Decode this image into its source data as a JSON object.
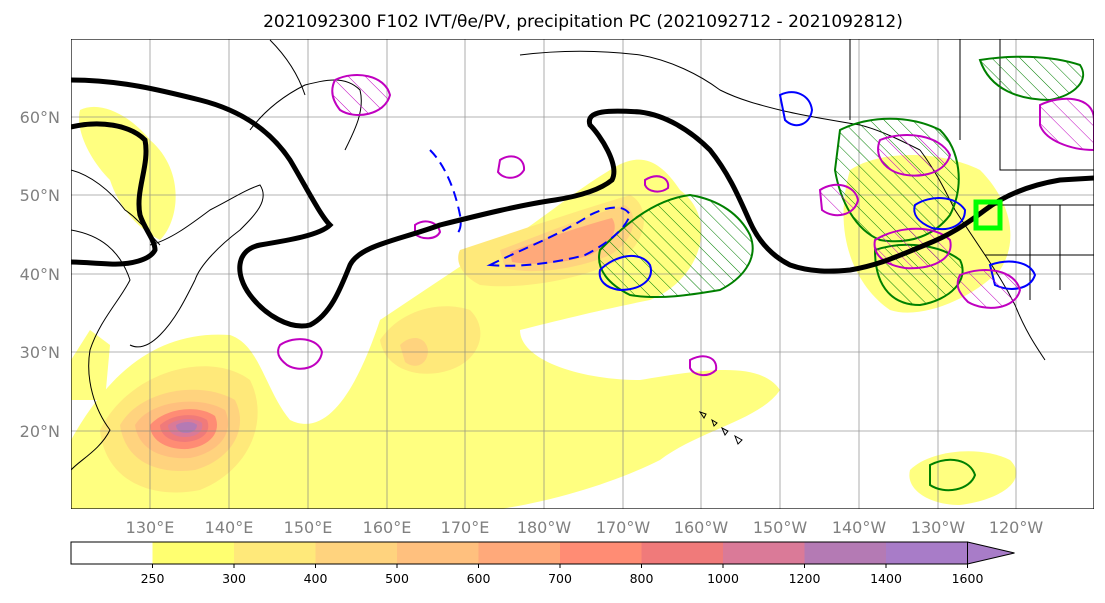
{
  "title": "2021092300 F102 IVT/θe/PV, precipitation PC (2021092712 - 2021092812)",
  "map": {
    "lat_labels": [
      "60°N",
      "50°N",
      "40°N",
      "30°N",
      "20°N"
    ],
    "lon_labels": [
      "130°E",
      "140°E",
      "150°E",
      "160°E",
      "170°E",
      "180°W",
      "170°W",
      "160°W",
      "150°W",
      "140°W",
      "130°W",
      "120°W"
    ],
    "lat_range": [
      10,
      70
    ],
    "lon_range": [
      120,
      250
    ]
  },
  "colorbar": {
    "ticks": [
      "250",
      "300",
      "400",
      "500",
      "600",
      "700",
      "800",
      "1000",
      "1200",
      "1400",
      "1600"
    ],
    "colors": [
      "#ffffff",
      "#ffff70",
      "#ffe97a",
      "#ffd37e",
      "#ffc07e",
      "#ffa97a",
      "#ff8c74",
      "#f07a7a",
      "#da7a98",
      "#b47ab4",
      "#a87cc8"
    ],
    "extend": "max"
  },
  "colors": {
    "theta_e": "#000000",
    "pv_blue": "#0000ff",
    "green": "#008000",
    "magenta": "#c000c0",
    "target_box": "#00ff00",
    "coast": "#000000"
  }
}
